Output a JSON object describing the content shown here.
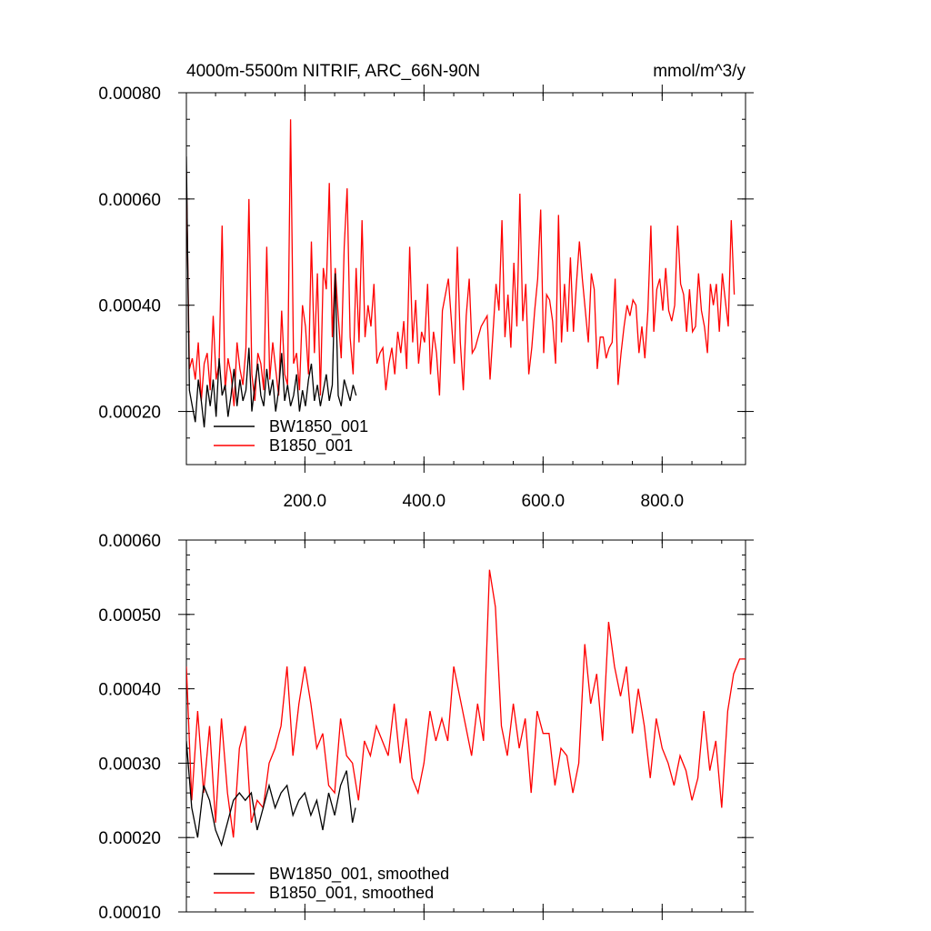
{
  "chart_data": [
    {
      "type": "line",
      "title": "4000m-5500m NITRIF, ARC_66N-90N",
      "units": "mmol/m^3/y",
      "xlim": [
        1,
        940
      ],
      "ylim": [
        0.0001,
        0.0008
      ],
      "x_ticks": [
        200,
        400,
        600,
        800
      ],
      "x_tick_labels": [
        "200.0",
        "400.0",
        "600.0",
        "800.0"
      ],
      "y_ticks": [
        0.0002,
        0.0004,
        0.0006,
        0.0008
      ],
      "y_tick_labels": [
        "0.00020",
        "0.00040",
        "0.00060",
        "0.00080"
      ],
      "legend_position": "bottom-left",
      "series": [
        {
          "name": "BW1850_001",
          "color": "#000000",
          "x_start": 1,
          "x_step": 5,
          "values": [
            0.00068,
            0.00024,
            0.00021,
            0.00018,
            0.00026,
            0.00022,
            0.00017,
            0.00025,
            0.00021,
            0.00026,
            0.00019,
            0.0003,
            0.00023,
            0.00025,
            0.00019,
            0.00023,
            0.00028,
            0.00021,
            0.00026,
            0.00022,
            0.00024,
            0.00032,
            0.0002,
            0.00025,
            0.00029,
            0.00023,
            0.00021,
            0.00028,
            0.00023,
            0.00026,
            0.0002,
            0.00024,
            0.00031,
            0.00022,
            0.00025,
            0.00021,
            0.00023,
            0.00027,
            0.0002,
            0.00024,
            0.00021,
            0.00026,
            0.00029,
            0.00022,
            0.00025,
            0.00021,
            0.00024,
            0.00027,
            0.00022,
            0.00025,
            0.00046,
            0.00023,
            0.00021,
            0.00026,
            0.00024,
            0.00022,
            0.00025,
            0.00023
          ]
        },
        {
          "name": "B1850_001",
          "color": "#ff0000",
          "x_start": 1,
          "x_step": 5,
          "values": [
            0.00065,
            0.00028,
            0.0003,
            0.00026,
            0.00033,
            0.00022,
            0.00029,
            0.00031,
            0.00024,
            0.00038,
            0.00026,
            0.00029,
            0.00055,
            0.00024,
            0.0003,
            0.00027,
            0.00021,
            0.00033,
            0.00028,
            0.00025,
            0.00032,
            0.0006,
            0.00027,
            0.00022,
            0.00031,
            0.00029,
            0.00024,
            0.00051,
            0.00026,
            0.00033,
            0.00028,
            0.00023,
            0.00039,
            0.00027,
            0.00025,
            0.00075,
            0.00029,
            0.00031,
            0.00024,
            0.0004,
            0.00036,
            0.00027,
            0.00052,
            0.00031,
            0.00046,
            0.00023,
            0.00047,
            0.00043,
            0.00063,
            0.00034,
            0.00047,
            0.00038,
            0.0003,
            0.00051,
            0.00062,
            0.00034,
            0.00027,
            0.00047,
            0.00033,
            0.00056,
            0.00034,
            0.0004,
            0.00036,
            0.00044,
            0.00029,
            0.00031,
            0.00032,
            0.00024,
            0.00029,
            0.00032,
            0.00027,
            0.00035,
            0.00031,
            0.00037,
            0.00028,
            0.00051,
            0.00033,
            0.00041,
            0.00029,
            0.00035,
            0.00033,
            0.00044,
            0.00027,
            0.00035,
            0.00031,
            0.00023,
            0.00039,
            0.00042,
            0.00045,
            0.00037,
            0.00029,
            0.00051,
            0.00033,
            0.00024,
            0.00038,
            0.00045,
            0.00031,
            0.00032,
            0.00034,
            0.00036,
            0.00037,
            0.00038,
            0.00026,
            0.00035,
            0.00044,
            0.00039,
            0.00056,
            0.00034,
            0.00042,
            0.00032,
            0.00048,
            0.00036,
            0.00061,
            0.00037,
            0.00044,
            0.00027,
            0.00032,
            0.00039,
            0.00045,
            0.00058,
            0.00031,
            0.00042,
            0.00041,
            0.00037,
            0.00029,
            0.00057,
            0.00033,
            0.00044,
            0.00035,
            0.00049,
            0.00035,
            0.00044,
            0.00052,
            0.00045,
            0.00039,
            0.00033,
            0.00046,
            0.00043,
            0.00028,
            0.00034,
            0.00034,
            0.0003,
            0.00032,
            0.00033,
            0.00045,
            0.00025,
            0.00031,
            0.00036,
            0.0004,
            0.00038,
            0.00041,
            0.0004,
            0.00031,
            0.00036,
            0.0003,
            0.00039,
            0.00055,
            0.00035,
            0.00043,
            0.00045,
            0.00039,
            0.00047,
            0.00039,
            0.00037,
            0.0004,
            0.00055,
            0.00044,
            0.00042,
            0.00035,
            0.00043,
            0.00035,
            0.00036,
            0.00046,
            0.00039,
            0.00036,
            0.00031,
            0.00044,
            0.0004,
            0.00044,
            0.00035,
            0.00046,
            0.00041,
            0.00036,
            0.00056,
            0.00042
          ]
        }
      ]
    },
    {
      "type": "line",
      "xlim": [
        1,
        940
      ],
      "ylim": [
        0.0001,
        0.0006
      ],
      "x_ticks": [
        200,
        400,
        600,
        800
      ],
      "y_ticks": [
        0.0001,
        0.0002,
        0.0003,
        0.0004,
        0.0005,
        0.0006
      ],
      "y_tick_labels": [
        "0.00010",
        "0.00020",
        "0.00030",
        "0.00040",
        "0.00050",
        "0.00060"
      ],
      "legend_position": "bottom-left",
      "series": [
        {
          "name": "BW1850_001, smoothed",
          "color": "#000000",
          "x": [
            1,
            10,
            20,
            30,
            40,
            50,
            60,
            70,
            80,
            90,
            100,
            110,
            120,
            130,
            140,
            150,
            160,
            170,
            180,
            190,
            200,
            210,
            220,
            230,
            240,
            250,
            260,
            270,
            280,
            285
          ],
          "values": [
            0.00033,
            0.00024,
            0.0002,
            0.00027,
            0.00025,
            0.00021,
            0.00019,
            0.00022,
            0.00025,
            0.00026,
            0.00025,
            0.00026,
            0.00021,
            0.00024,
            0.00027,
            0.00024,
            0.00026,
            0.00027,
            0.00023,
            0.00025,
            0.00026,
            0.00023,
            0.00025,
            0.00021,
            0.00026,
            0.00023,
            0.00027,
            0.00029,
            0.00022,
            0.00024
          ]
        },
        {
          "name": "B1850_001, smoothed",
          "color": "#ff0000",
          "x": [
            1,
            10,
            20,
            30,
            40,
            50,
            60,
            70,
            80,
            90,
            100,
            110,
            120,
            130,
            140,
            150,
            160,
            170,
            180,
            190,
            200,
            210,
            220,
            230,
            240,
            250,
            260,
            270,
            280,
            290,
            300,
            310,
            320,
            330,
            340,
            350,
            360,
            370,
            380,
            390,
            400,
            410,
            420,
            430,
            440,
            450,
            460,
            470,
            480,
            490,
            500,
            510,
            520,
            530,
            540,
            550,
            560,
            570,
            580,
            590,
            600,
            610,
            620,
            630,
            640,
            650,
            660,
            670,
            680,
            690,
            700,
            710,
            720,
            730,
            740,
            750,
            760,
            770,
            780,
            790,
            800,
            810,
            820,
            830,
            840,
            850,
            860,
            870,
            880,
            890,
            900,
            910,
            920,
            930,
            940
          ],
          "values": [
            0.00043,
            0.00025,
            0.00037,
            0.00026,
            0.00035,
            0.00022,
            0.00036,
            0.00026,
            0.0002,
            0.00032,
            0.00035,
            0.00022,
            0.00025,
            0.00024,
            0.0003,
            0.00032,
            0.00035,
            0.00043,
            0.00031,
            0.00038,
            0.00043,
            0.00038,
            0.00032,
            0.00034,
            0.00027,
            0.00026,
            0.00036,
            0.00031,
            0.0003,
            0.00025,
            0.00033,
            0.00031,
            0.00035,
            0.00033,
            0.00031,
            0.00038,
            0.0003,
            0.00036,
            0.00028,
            0.00026,
            0.0003,
            0.00037,
            0.00033,
            0.00036,
            0.00033,
            0.00043,
            0.00039,
            0.00035,
            0.00031,
            0.00038,
            0.00033,
            0.00056,
            0.00051,
            0.00035,
            0.00031,
            0.00038,
            0.00032,
            0.00036,
            0.00026,
            0.00037,
            0.00034,
            0.00034,
            0.00027,
            0.00032,
            0.00031,
            0.00026,
            0.0003,
            0.00046,
            0.00038,
            0.00042,
            0.00033,
            0.00049,
            0.00043,
            0.00039,
            0.00043,
            0.00034,
            0.0004,
            0.00035,
            0.00028,
            0.00036,
            0.00032,
            0.0003,
            0.00027,
            0.00031,
            0.00029,
            0.00025,
            0.00028,
            0.00037,
            0.00029,
            0.00033,
            0.00024,
            0.00037,
            0.00042,
            0.00044,
            0.00044
          ]
        }
      ]
    }
  ]
}
